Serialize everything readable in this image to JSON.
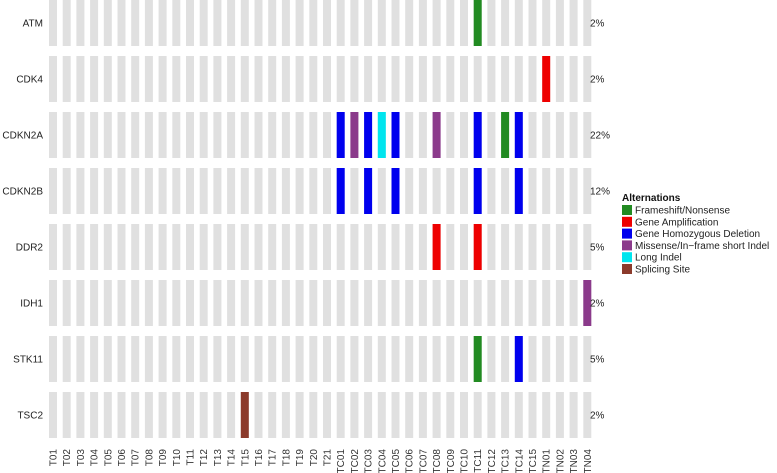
{
  "chart_data": {
    "type": "heatmap",
    "genes": [
      "ATM",
      "CDK4",
      "CDKN2A",
      "CDKN2B",
      "DDR2",
      "IDH1",
      "STK11",
      "TSC2"
    ],
    "percentages": [
      "2%",
      "2%",
      "22%",
      "12%",
      "5%",
      "2%",
      "5%",
      "2%"
    ],
    "samples": [
      "T01",
      "T02",
      "T03",
      "T04",
      "T05",
      "T06",
      "T07",
      "T08",
      "T09",
      "T10",
      "T11",
      "T12",
      "T13",
      "T14",
      "T15",
      "T16",
      "T17",
      "T18",
      "T19",
      "T20",
      "T21",
      "TC01",
      "TC02",
      "TC03",
      "TC04",
      "TC05",
      "TC06",
      "TC07",
      "TC08",
      "TC09",
      "TC10",
      "TC11",
      "TC12",
      "TC13",
      "TC14",
      "TC15",
      "TN01",
      "TN02",
      "TN03",
      "TN04"
    ],
    "legend": {
      "title": "Alternations",
      "entries": [
        {
          "key": "frameshift",
          "label": "Frameshift/Nonsense",
          "color": "#228b22"
        },
        {
          "key": "amplification",
          "label": "Gene Amplification",
          "color": "#ee0000"
        },
        {
          "key": "deletion",
          "label": "Gene Homozygous Deletion",
          "color": "#0000ee"
        },
        {
          "key": "missense",
          "label": "Missense/In−frame short Indel",
          "color": "#8b3a8b"
        },
        {
          "key": "long_indel",
          "label": "Long Indel",
          "color": "#00e5ee"
        },
        {
          "key": "splicing",
          "label": "Splicing Site",
          "color": "#8b3a2b"
        }
      ]
    },
    "background_color": "#e0e0e0",
    "alterations": [
      {
        "gene": "ATM",
        "sample": "TC11",
        "type": "frameshift"
      },
      {
        "gene": "CDK4",
        "sample": "TN01",
        "type": "amplification"
      },
      {
        "gene": "CDKN2A",
        "sample": "TC01",
        "type": "deletion"
      },
      {
        "gene": "CDKN2A",
        "sample": "TC02",
        "type": "missense"
      },
      {
        "gene": "CDKN2A",
        "sample": "TC03",
        "type": "deletion"
      },
      {
        "gene": "CDKN2A",
        "sample": "TC04",
        "type": "long_indel"
      },
      {
        "gene": "CDKN2A",
        "sample": "TC05",
        "type": "deletion"
      },
      {
        "gene": "CDKN2A",
        "sample": "TC08",
        "type": "missense"
      },
      {
        "gene": "CDKN2A",
        "sample": "TC11",
        "type": "deletion"
      },
      {
        "gene": "CDKN2A",
        "sample": "TC13",
        "type": "frameshift"
      },
      {
        "gene": "CDKN2A",
        "sample": "TC14",
        "type": "deletion"
      },
      {
        "gene": "CDKN2B",
        "sample": "TC01",
        "type": "deletion"
      },
      {
        "gene": "CDKN2B",
        "sample": "TC03",
        "type": "deletion"
      },
      {
        "gene": "CDKN2B",
        "sample": "TC05",
        "type": "deletion"
      },
      {
        "gene": "CDKN2B",
        "sample": "TC11",
        "type": "deletion"
      },
      {
        "gene": "CDKN2B",
        "sample": "TC14",
        "type": "deletion"
      },
      {
        "gene": "DDR2",
        "sample": "TC08",
        "type": "amplification"
      },
      {
        "gene": "DDR2",
        "sample": "TC11",
        "type": "amplification"
      },
      {
        "gene": "IDH1",
        "sample": "TN04",
        "type": "missense"
      },
      {
        "gene": "STK11",
        "sample": "TC11",
        "type": "frameshift"
      },
      {
        "gene": "STK11",
        "sample": "TC14",
        "type": "deletion"
      },
      {
        "gene": "TSC2",
        "sample": "T15",
        "type": "splicing"
      }
    ]
  }
}
